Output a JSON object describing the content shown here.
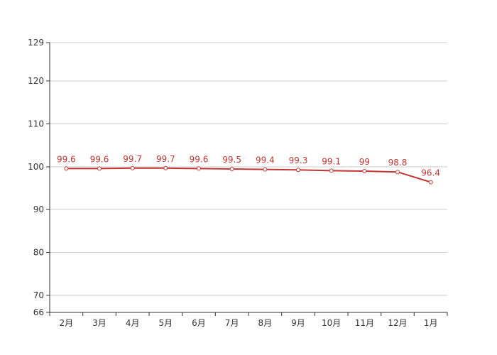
{
  "chart_data": {
    "type": "line",
    "categories": [
      "2月",
      "3月",
      "4月",
      "5月",
      "6月",
      "7月",
      "8月",
      "9月",
      "10月",
      "11月",
      "12月",
      "1月"
    ],
    "series": [
      {
        "values": [
          99.6,
          99.6,
          99.7,
          99.7,
          99.6,
          99.5,
          99.4,
          99.3,
          99.1,
          99,
          98.8,
          96.4
        ]
      }
    ],
    "y_ticks": [
      66,
      70,
      80,
      90,
      100,
      110,
      120,
      129
    ],
    "ylim": [
      66,
      129
    ],
    "grid": true,
    "line_color": "#c23531",
    "data_labels": true
  }
}
